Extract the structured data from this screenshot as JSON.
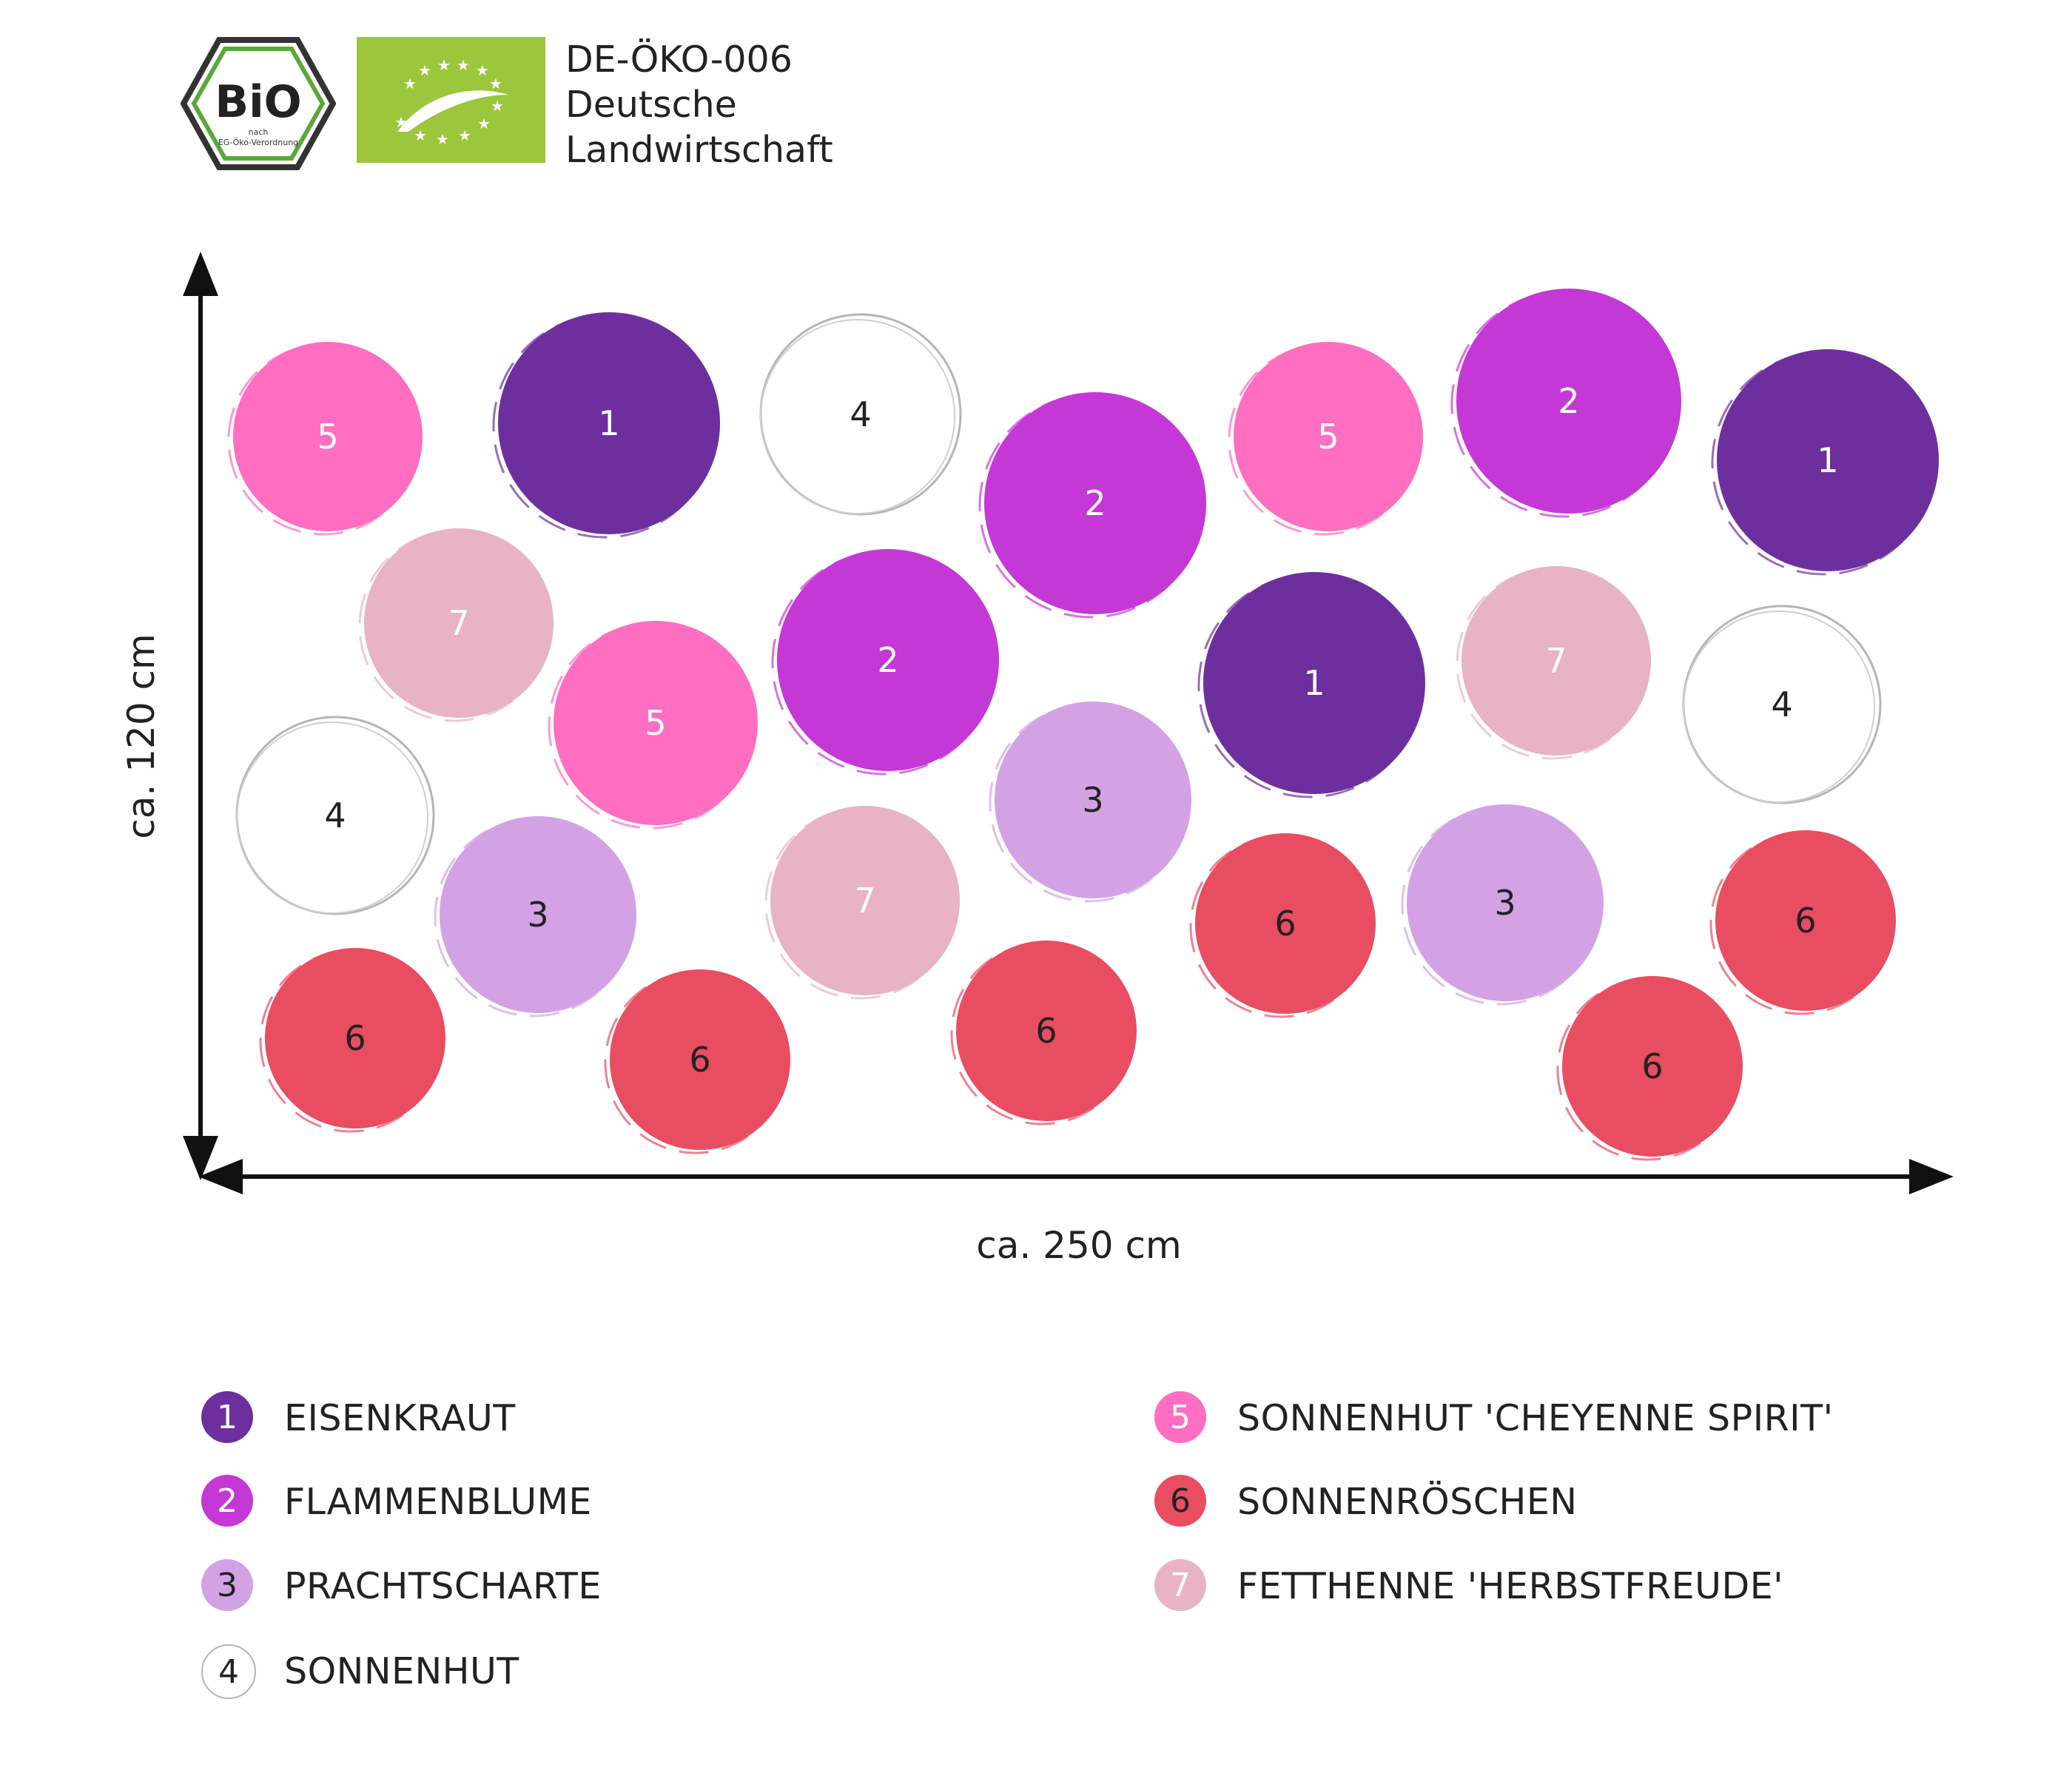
{
  "certification": {
    "bio_badge_text": "BiO",
    "bio_badge_sub1": "nach",
    "bio_badge_sub2": "EG-Öko-Verordnung",
    "code": "DE-ÖKO-006",
    "line2": "Deutsche",
    "line3": "Landwirtschaft"
  },
  "dimensions": {
    "height_label": "ca. 120 cm",
    "width_label": "ca. 250 cm"
  },
  "colors": {
    "1": "#6e2f9e",
    "2": "#c438d6",
    "3": "#d3a2e5",
    "4": "#ffffff",
    "5": "#ff6ec0",
    "6": "#e84d61",
    "7": "#e8b3c4",
    "eu_green": "#9cc63b"
  },
  "plan": {
    "plants": [
      {
        "n": "5"
      },
      {
        "n": "1"
      },
      {
        "n": "4"
      },
      {
        "n": "2"
      },
      {
        "n": "5"
      },
      {
        "n": "2"
      },
      {
        "n": "1"
      },
      {
        "n": "7"
      },
      {
        "n": "5"
      },
      {
        "n": "2"
      },
      {
        "n": "1"
      },
      {
        "n": "7"
      },
      {
        "n": "4"
      },
      {
        "n": "4"
      },
      {
        "n": "3"
      },
      {
        "n": "7"
      },
      {
        "n": "3"
      },
      {
        "n": "6"
      },
      {
        "n": "3"
      },
      {
        "n": "6"
      },
      {
        "n": "6"
      },
      {
        "n": "6"
      },
      {
        "n": "6"
      },
      {
        "n": "6"
      }
    ]
  },
  "legend": {
    "items": [
      {
        "n": "1",
        "label": "EISENKRAUT"
      },
      {
        "n": "2",
        "label": "FLAMMENBLUME"
      },
      {
        "n": "3",
        "label": "PRACHTSCHARTE"
      },
      {
        "n": "4",
        "label": "SONNENHUT"
      },
      {
        "n": "5",
        "label": "SONNENHUT 'CHEYENNE SPIRIT'"
      },
      {
        "n": "6",
        "label": "SONNENRÖSCHEN"
      },
      {
        "n": "7",
        "label": "FETTHENNE 'HERBSTFREUDE'"
      }
    ]
  }
}
